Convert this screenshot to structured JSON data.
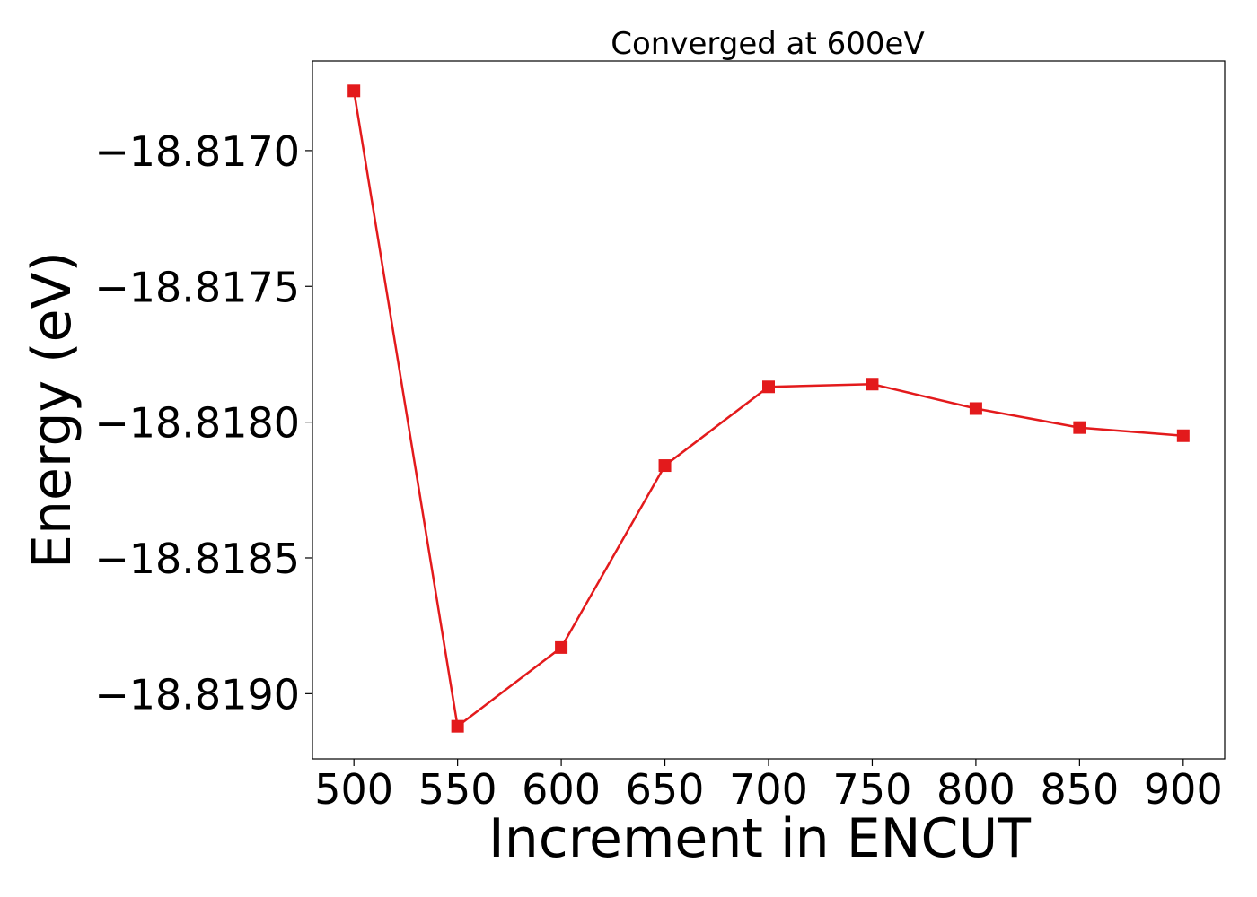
{
  "chart_data": {
    "type": "line",
    "title": "Converged at 600eV",
    "xlabel": "Increment in ENCUT",
    "ylabel": "Energy (eV)",
    "x": [
      500,
      550,
      600,
      650,
      700,
      750,
      800,
      850,
      900
    ],
    "series": [
      {
        "values": [
          -18.81678,
          -18.81912,
          -18.81883,
          -18.81816,
          -18.81787,
          -18.81786,
          -18.81795,
          -18.81802,
          -18.81805
        ],
        "color": "#e31a1c",
        "marker": "square"
      }
    ],
    "xticks": [
      500,
      550,
      600,
      650,
      700,
      750,
      800,
      850,
      900
    ],
    "xtick_labels": [
      "500",
      "550",
      "600",
      "650",
      "700",
      "750",
      "800",
      "850",
      "900"
    ],
    "yticks": [
      -18.817,
      -18.8175,
      -18.818,
      -18.8185,
      -18.819
    ],
    "ytick_labels": [
      "−18.8170",
      "−18.8175",
      "−18.8180",
      "−18.8185",
      "−18.8190"
    ],
    "xlim": [
      480,
      920
    ],
    "ylim": [
      -18.81924,
      -18.81667
    ],
    "grid": false,
    "legend": "none"
  }
}
